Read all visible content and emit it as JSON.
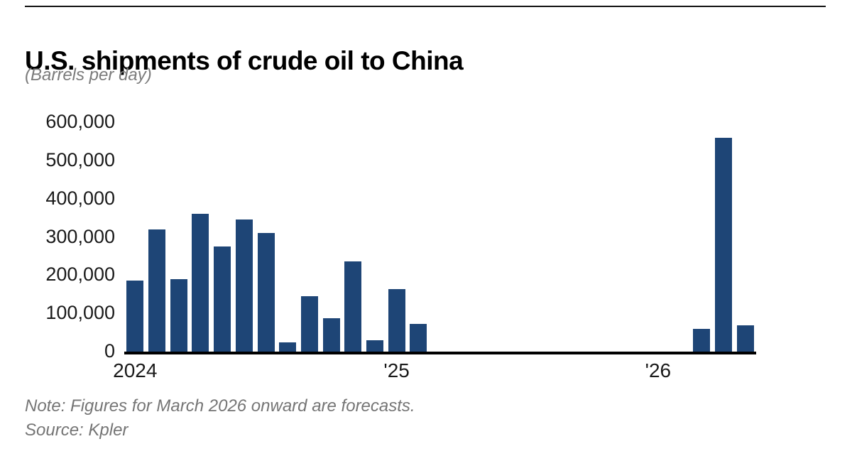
{
  "header": {
    "title": "U.S. shipments of crude oil to China",
    "subtitle": "(Barrels per day)"
  },
  "footer": {
    "note": "Note: Figures for March 2026 onward are forecasts.",
    "source": "Source: Kpler"
  },
  "chart_data": {
    "type": "bar",
    "title": "U.S. shipments of crude oil to China",
    "ylabel": "Barrels per day",
    "ylim": [
      0,
      600000
    ],
    "grid": false,
    "legend": "none",
    "bar_color": "#1e4576",
    "categories": [
      "Jan 2024",
      "Feb 2024",
      "Mar 2024",
      "Apr 2024",
      "May 2024",
      "Jun 2024",
      "Jul 2024",
      "Aug 2024",
      "Sep 2024",
      "Oct 2024",
      "Nov 2024",
      "Dec 2024",
      "Jan 2025",
      "Feb 2025",
      "Mar 2025",
      "Apr 2025",
      "May 2025",
      "Jun 2025",
      "Jul 2025",
      "Aug 2025",
      "Sep 2025",
      "Oct 2025",
      "Nov 2025",
      "Dec 2025",
      "Jan 2026",
      "Feb 2026",
      "Mar 2026",
      "Apr 2026",
      "May 2026"
    ],
    "values": [
      185000,
      320000,
      190000,
      360000,
      275000,
      345000,
      310000,
      25000,
      145000,
      88000,
      235000,
      30000,
      163000,
      72000,
      0,
      0,
      0,
      0,
      0,
      0,
      0,
      0,
      0,
      0,
      0,
      0,
      60000,
      560000,
      68000
    ],
    "y_ticks": [
      {
        "value": 600000,
        "label": "600,000"
      },
      {
        "value": 500000,
        "label": "500,000"
      },
      {
        "value": 400000,
        "label": "400,000"
      },
      {
        "value": 300000,
        "label": "300,000"
      },
      {
        "value": 200000,
        "label": "200,000"
      },
      {
        "value": 100000,
        "label": "100,000"
      },
      {
        "value": 0,
        "label": "0"
      }
    ],
    "x_ticks": [
      {
        "label": "2024",
        "month_index": 0
      },
      {
        "label": "'25",
        "month_index": 12
      },
      {
        "label": "'26",
        "month_index": 24
      }
    ]
  }
}
